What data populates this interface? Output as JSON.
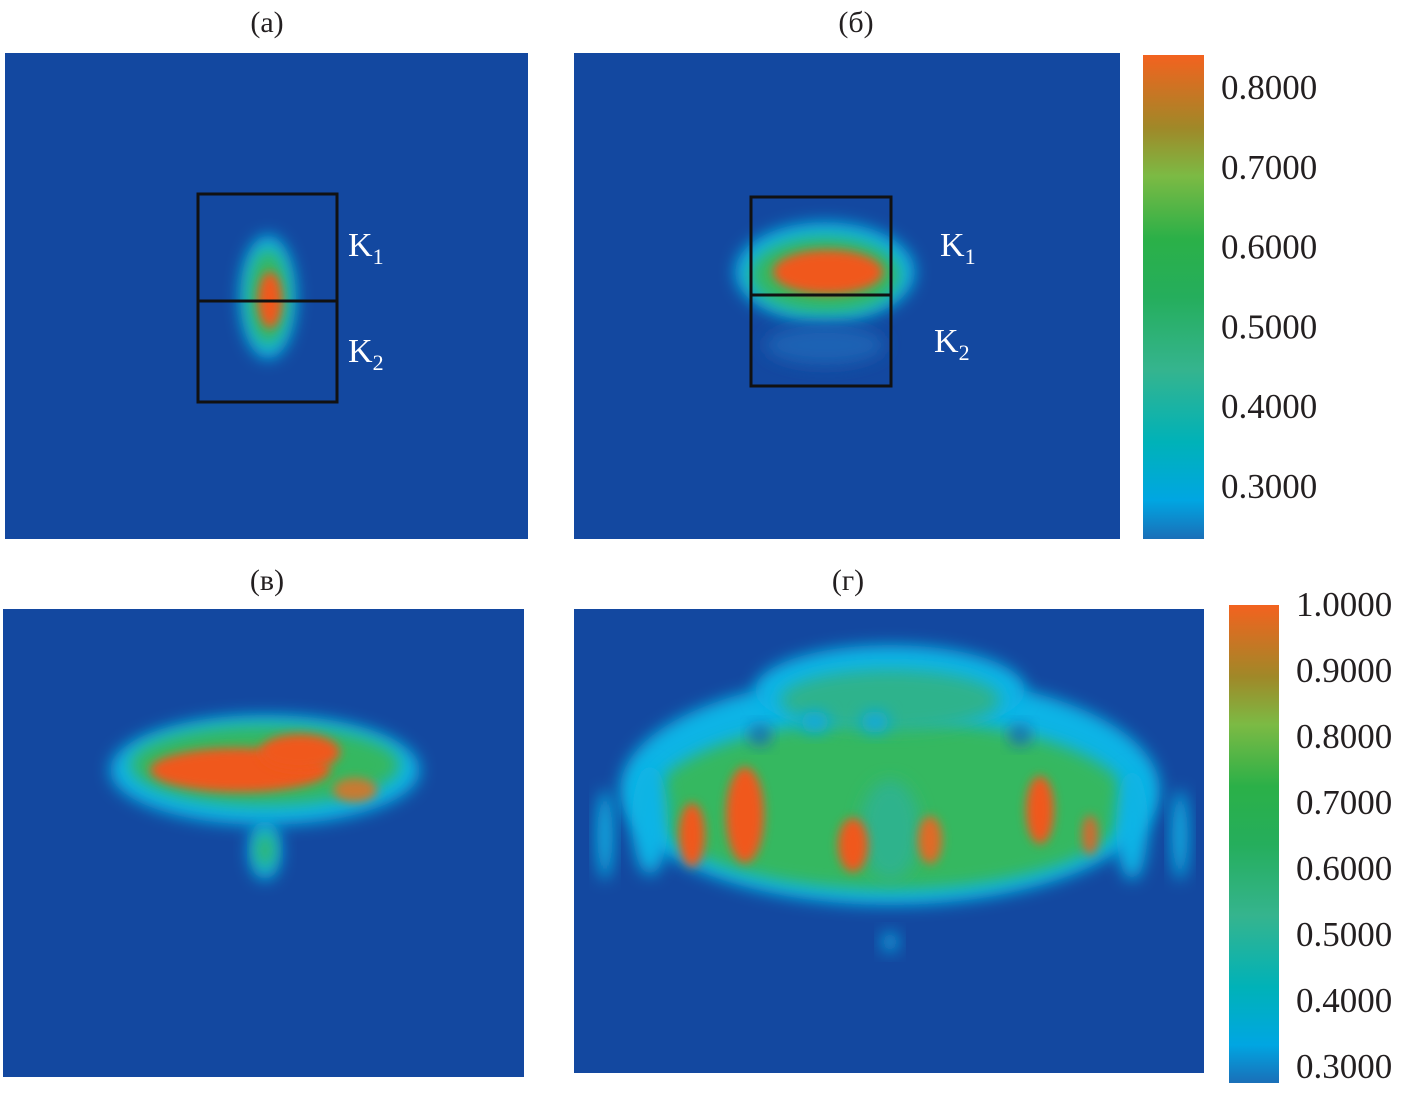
{
  "chart_data": [
    {
      "type": "heatmap",
      "title": "(а)",
      "labels": [
        "K",
        "1",
        "K",
        "2"
      ],
      "colorbar": "colorbar-top"
    },
    {
      "type": "heatmap",
      "title": "(б)",
      "labels": [
        "K",
        "1",
        "K",
        "2"
      ],
      "colorbar": "colorbar-top"
    },
    {
      "type": "heatmap",
      "title": "(в)",
      "colorbar": "colorbar-top"
    },
    {
      "type": "heatmap",
      "title": "(г)",
      "colorbar": "colorbar-bottom"
    }
  ],
  "colorbars": {
    "top": {
      "ticks": [
        "0.8000",
        "0.7000",
        "0.6000",
        "0.5000",
        "0.4000",
        "0.3000"
      ],
      "range": [
        0.25,
        0.85
      ]
    },
    "bottom": {
      "ticks": [
        "1.0000",
        "0.9000",
        "0.8000",
        "0.7000",
        "0.6000",
        "0.5000",
        "0.4000",
        "0.3000"
      ],
      "range": [
        0.3,
        1.0
      ]
    }
  },
  "colors": {
    "background": "#1348a0",
    "cyan": "#0ab4e6",
    "green": "#35b860",
    "orange": "#f0581e"
  }
}
